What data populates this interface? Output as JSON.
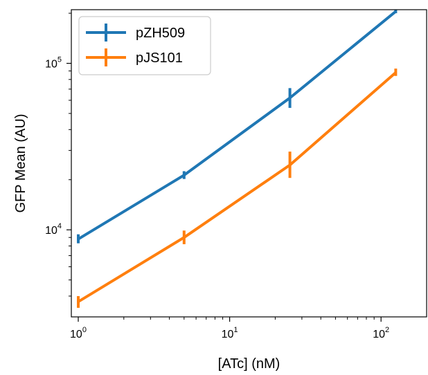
{
  "chart_data": {
    "type": "line",
    "xscale": "log",
    "yscale": "log",
    "xlabel": "[ATc] (nM)",
    "ylabel": "GFP Mean (AU)",
    "xlim": [
      0.9,
      200
    ],
    "ylim": [
      3000,
      210000
    ],
    "x_ticks": [
      {
        "value": 1,
        "base": "10",
        "exp": "0"
      },
      {
        "value": 10,
        "base": "10",
        "exp": "1"
      },
      {
        "value": 100,
        "base": "10",
        "exp": "2"
      }
    ],
    "y_ticks": [
      {
        "value": 10000,
        "base": "10",
        "exp": "4"
      },
      {
        "value": 100000,
        "base": "10",
        "exp": "5"
      }
    ],
    "legend_position": "top-left",
    "grid": false,
    "series": [
      {
        "name": "pZH509",
        "color": "#1f77b4",
        "points": [
          {
            "x": 1,
            "y": 8800,
            "ylow": 8300,
            "yhigh": 9400
          },
          {
            "x": 5,
            "y": 21300,
            "ylow": 20200,
            "yhigh": 22500
          },
          {
            "x": 25,
            "y": 62000,
            "ylow": 54000,
            "yhigh": 71000
          },
          {
            "x": 125,
            "y": 205000,
            "ylow": 200000,
            "yhigh": 210000
          }
        ]
      },
      {
        "name": "pJS101",
        "color": "#ff7f0e",
        "points": [
          {
            "x": 1,
            "y": 3700,
            "ylow": 3400,
            "yhigh": 4000
          },
          {
            "x": 5,
            "y": 9000,
            "ylow": 8200,
            "yhigh": 9900
          },
          {
            "x": 25,
            "y": 24500,
            "ylow": 20500,
            "yhigh": 29500
          },
          {
            "x": 125,
            "y": 88000,
            "ylow": 84000,
            "yhigh": 93000
          }
        ]
      }
    ]
  }
}
